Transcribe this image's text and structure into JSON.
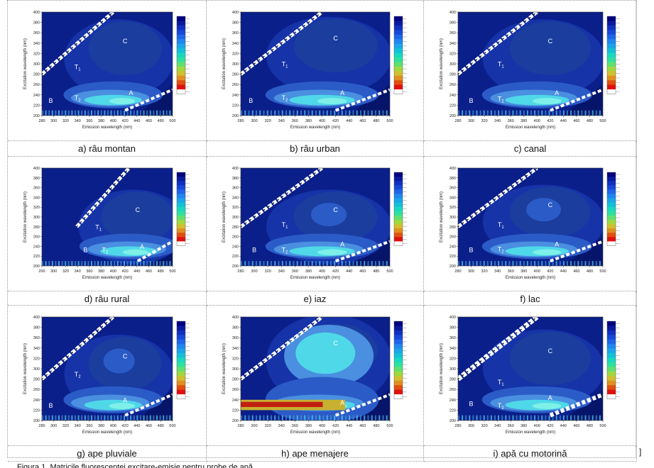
{
  "chart_data": [
    {
      "type": "heatmap",
      "caption": "a) râu montan",
      "xlabel": "Emission wavelength (nm)",
      "ylabel": "Excitation wavelength (nm)",
      "xlim": [
        280,
        500
      ],
      "ylim": [
        200,
        400
      ],
      "xticks": [
        280,
        300,
        320,
        340,
        360,
        380,
        400,
        420,
        440,
        460,
        480,
        500
      ],
      "yticks": [
        200,
        220,
        240,
        260,
        280,
        300,
        320,
        340,
        360,
        380,
        400
      ],
      "peaks": [
        {
          "label": "C",
          "x": 420,
          "y": 340
        },
        {
          "label": "T1",
          "x": 340,
          "y": 290
        },
        {
          "label": "A",
          "x": 430,
          "y": 240
        },
        {
          "label": "T2",
          "x": 340,
          "y": 230
        },
        {
          "label": "B",
          "x": 295,
          "y": 225
        }
      ]
    },
    {
      "type": "heatmap",
      "caption": "b) râu urban",
      "xlabel": "Emission wavelength (nm)",
      "ylabel": "Excitation wavelength (nm)",
      "xlim": [
        280,
        500
      ],
      "ylim": [
        200,
        400
      ],
      "xticks": [
        280,
        300,
        320,
        340,
        360,
        380,
        400,
        420,
        440,
        460,
        480,
        500
      ],
      "yticks": [
        200,
        220,
        240,
        260,
        280,
        300,
        320,
        340,
        360,
        380,
        400
      ],
      "peaks": [
        {
          "label": "C",
          "x": 420,
          "y": 345
        },
        {
          "label": "T1",
          "x": 345,
          "y": 295
        },
        {
          "label": "A",
          "x": 430,
          "y": 240
        },
        {
          "label": "T2",
          "x": 345,
          "y": 230
        },
        {
          "label": "B",
          "x": 295,
          "y": 225
        }
      ]
    },
    {
      "type": "heatmap",
      "caption": "c) canal",
      "xlabel": "Emission wavelength (nm)",
      "ylabel": "Excitation wavelength (nm)",
      "xlim": [
        280,
        500
      ],
      "ylim": [
        200,
        400
      ],
      "xticks": [
        280,
        300,
        320,
        340,
        360,
        380,
        400,
        420,
        440,
        460,
        480,
        500
      ],
      "yticks": [
        200,
        220,
        240,
        260,
        280,
        300,
        320,
        340,
        360,
        380,
        400
      ],
      "peaks": [
        {
          "label": "C",
          "x": 420,
          "y": 340
        },
        {
          "label": "T1",
          "x": 345,
          "y": 295
        },
        {
          "label": "A",
          "x": 430,
          "y": 240
        },
        {
          "label": "T2",
          "x": 345,
          "y": 228
        },
        {
          "label": "B",
          "x": 300,
          "y": 225
        }
      ]
    },
    {
      "type": "heatmap",
      "caption": "d) râu rural",
      "xlabel": "Emission wavelength (nm)",
      "ylabel": "Excitation wavelength (nm)",
      "xlim": [
        200,
        500
      ],
      "ylim": [
        200,
        400
      ],
      "xticks": [
        200,
        300,
        320,
        340,
        360,
        380,
        400,
        420,
        440,
        460,
        480,
        500
      ],
      "yticks": [
        200,
        220,
        240,
        260,
        280,
        300,
        320,
        340,
        360,
        380,
        400
      ],
      "peaks": [
        {
          "label": "C",
          "x": 420,
          "y": 310
        },
        {
          "label": "T1",
          "x": 330,
          "y": 275
        },
        {
          "label": "A",
          "x": 430,
          "y": 235
        },
        {
          "label": "T2",
          "x": 345,
          "y": 228
        },
        {
          "label": "B",
          "x": 300,
          "y": 228
        }
      ]
    },
    {
      "type": "heatmap",
      "caption": "e) iaz",
      "xlabel": "Emission wavelength (nm)",
      "ylabel": "Excitation wavelength (nm)",
      "xlim": [
        280,
        500
      ],
      "ylim": [
        200,
        400
      ],
      "xticks": [
        280,
        300,
        320,
        340,
        360,
        380,
        400,
        420,
        440,
        460,
        480,
        500
      ],
      "yticks": [
        200,
        220,
        240,
        260,
        280,
        300,
        320,
        340,
        360,
        380,
        400
      ],
      "peaks": [
        {
          "label": "C",
          "x": 420,
          "y": 310
        },
        {
          "label": "T1",
          "x": 345,
          "y": 280
        },
        {
          "label": "A",
          "x": 430,
          "y": 240
        },
        {
          "label": "T2",
          "x": 345,
          "y": 228
        },
        {
          "label": "B",
          "x": 300,
          "y": 228
        }
      ]
    },
    {
      "type": "heatmap",
      "caption": "f) lac",
      "xlabel": "Emission wavelength (nm)",
      "ylabel": "Excitation wavelength (nm)",
      "xlim": [
        280,
        500
      ],
      "ylim": [
        200,
        400
      ],
      "xticks": [
        280,
        300,
        320,
        340,
        360,
        380,
        400,
        420,
        440,
        460,
        480,
        500
      ],
      "yticks": [
        200,
        220,
        240,
        260,
        280,
        300,
        320,
        340,
        360,
        380,
        400
      ],
      "peaks": [
        {
          "label": "C",
          "x": 420,
          "y": 320
        },
        {
          "label": "T1",
          "x": 345,
          "y": 280
        },
        {
          "label": "A",
          "x": 430,
          "y": 240
        },
        {
          "label": "T2",
          "x": 345,
          "y": 230
        },
        {
          "label": "B",
          "x": 300,
          "y": 228
        }
      ]
    },
    {
      "type": "heatmap",
      "caption": "g) ape pluviale",
      "xlabel": "Emission wavelength (nm)",
      "ylabel": "Excitation wavelength (nm)",
      "xlim": [
        280,
        500
      ],
      "ylim": [
        200,
        400
      ],
      "xticks": [
        280,
        300,
        320,
        340,
        360,
        380,
        400,
        420,
        440,
        460,
        480,
        500
      ],
      "yticks": [
        200,
        220,
        240,
        260,
        280,
        300,
        320,
        340,
        360,
        380,
        400
      ],
      "peaks": [
        {
          "label": "C",
          "x": 420,
          "y": 320
        },
        {
          "label": "T2",
          "x": 340,
          "y": 285
        },
        {
          "label": "A",
          "x": 420,
          "y": 235
        },
        {
          "label": "B",
          "x": 295,
          "y": 225
        }
      ]
    },
    {
      "type": "heatmap",
      "caption": "h) ape menajere",
      "xlabel": "Emission wavelength (nm)",
      "ylabel": "Excitation wavelength (nm)",
      "xlim": [
        280,
        500
      ],
      "ylim": [
        200,
        400
      ],
      "xticks": [
        280,
        300,
        320,
        340,
        360,
        380,
        400,
        420,
        440,
        460,
        480,
        500
      ],
      "yticks": [
        200,
        220,
        240,
        260,
        280,
        300,
        320,
        340,
        360,
        380,
        400
      ],
      "peaks": [
        {
          "label": "C",
          "x": 420,
          "y": 345
        },
        {
          "label": "A",
          "x": 430,
          "y": 230
        }
      ]
    },
    {
      "type": "heatmap",
      "caption": "i) apă cu motorină",
      "xlabel": "Emission wavelength (nm)",
      "ylabel": "Excitation wavelength (nm)",
      "xlim": [
        280,
        500
      ],
      "ylim": [
        200,
        400
      ],
      "xticks": [
        280,
        300,
        320,
        340,
        360,
        380,
        400,
        420,
        440,
        460,
        480,
        500
      ],
      "yticks": [
        200,
        220,
        240,
        260,
        280,
        300,
        320,
        340,
        360,
        380,
        400
      ],
      "peaks": [
        {
          "label": "C",
          "x": 420,
          "y": 330
        },
        {
          "label": "T1",
          "x": 345,
          "y": 270
        },
        {
          "label": "A",
          "x": 420,
          "y": 240
        },
        {
          "label": "T2",
          "x": 345,
          "y": 225
        },
        {
          "label": "B",
          "x": 300,
          "y": 228
        }
      ]
    }
  ],
  "colorbar_colors": [
    "#000080",
    "#0a1a9c",
    "#1030c0",
    "#1848d8",
    "#1e66e8",
    "#2286f0",
    "#1aa6e8",
    "#14c0d8",
    "#18d8c0",
    "#30e0a0",
    "#60e070",
    "#a0d840",
    "#d0c030",
    "#e09020",
    "#e05010",
    "#e01010",
    "#ffffff"
  ],
  "colors": {
    "background_blue": "#1a3d9e",
    "mid_blue": "#2b5bc7",
    "light_blue": "#4a8fe0",
    "cyan": "#4fd8e8",
    "aqua": "#7ef0e8"
  },
  "footer_fragment": "Figura 1. Matricile fluorescenței excitare-emisie pentru probe de apă"
}
